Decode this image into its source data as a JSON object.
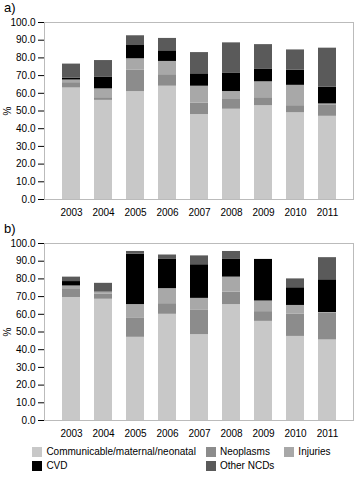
{
  "chart_data": [
    {
      "type": "bar",
      "title": "a)",
      "stacked": true,
      "y_label": "%",
      "categories": [
        "2003",
        "2004",
        "2005",
        "2006",
        "2007",
        "2008",
        "2009",
        "2010",
        "2011"
      ],
      "ylim": [
        0,
        100
      ],
      "yticks": [
        {
          "value": 0,
          "label": "0.0"
        },
        {
          "value": 10,
          "label": "10.0"
        },
        {
          "value": 20,
          "label": "20.0"
        },
        {
          "value": 30,
          "label": "30.0"
        },
        {
          "value": 40,
          "label": "40.0"
        },
        {
          "value": 50,
          "label": "50.0"
        },
        {
          "value": 60,
          "label": "60.0"
        },
        {
          "value": 70,
          "label": "70.0"
        },
        {
          "value": 80,
          "label": "80.0"
        },
        {
          "value": 90,
          "label": "90.0"
        },
        {
          "value": 100,
          "label": "100.0"
        }
      ],
      "series": [
        {
          "name": "Communicable/maternal/neonatal",
          "color": "#c8c8c8",
          "values": [
            63,
            56,
            61,
            64,
            48,
            51,
            53,
            49,
            47
          ]
        },
        {
          "name": "Neoplasms",
          "color": "#8c8c8c",
          "values": [
            3,
            1.5,
            12,
            6.5,
            6.5,
            5.5,
            4.5,
            4,
            6.5
          ]
        },
        {
          "name": "Injuries",
          "color": "#a8a8a8",
          "values": [
            1.5,
            5,
            6.5,
            7.5,
            9.5,
            4.5,
            9,
            11.5,
            0.5
          ]
        },
        {
          "name": "CVD",
          "color": "#000000",
          "values": [
            1,
            6.5,
            7.5,
            6,
            7,
            10.5,
            7,
            8.5,
            9.5
          ]
        },
        {
          "name": "Other NCDs",
          "color": "#5a5a5a",
          "values": [
            8,
            9.5,
            5.5,
            7,
            12,
            17,
            14,
            11.5,
            22
          ]
        }
      ]
    },
    {
      "type": "bar",
      "title": "b)",
      "stacked": true,
      "y_label": "%",
      "legend": "bottom",
      "categories": [
        "2003",
        "2004",
        "2005",
        "2006",
        "2007",
        "2008",
        "2009",
        "2010",
        "2011"
      ],
      "ylim": [
        0,
        100
      ],
      "yticks": [
        {
          "value": 0,
          "label": "0.0"
        },
        {
          "value": 10,
          "label": "10.0"
        },
        {
          "value": 20,
          "label": "20.0"
        },
        {
          "value": 30,
          "label": "30.0"
        },
        {
          "value": 40,
          "label": "40.0"
        },
        {
          "value": 50,
          "label": "50.0"
        },
        {
          "value": 60,
          "label": "60.0"
        },
        {
          "value": 70,
          "label": "70.0"
        },
        {
          "value": 80,
          "label": "80.0"
        },
        {
          "value": 90,
          "label": "90.0"
        },
        {
          "value": 100,
          "label": "100.0"
        }
      ],
      "series": [
        {
          "name": "Communicable/maternal/neonatal",
          "color": "#c8c8c8",
          "values": [
            69.5,
            68.5,
            47,
            60,
            48.5,
            65.5,
            56,
            47.5,
            45.5
          ]
        },
        {
          "name": "Neoplasms",
          "color": "#8c8c8c",
          "values": [
            4.5,
            3,
            11,
            6,
            14,
            7,
            5.5,
            12.5,
            15
          ]
        },
        {
          "name": "Injuries",
          "color": "#a8a8a8",
          "values": [
            2,
            1,
            7.5,
            8.5,
            6.5,
            8.5,
            6,
            5,
            0.5
          ]
        },
        {
          "name": "CVD",
          "color": "#000000",
          "values": [
            2.5,
            0,
            28.5,
            16.5,
            19,
            10,
            23.5,
            10,
            18.5
          ]
        },
        {
          "name": "Other NCDs",
          "color": "#5a5a5a",
          "values": [
            2.5,
            5,
            1.5,
            2.5,
            5,
            4.5,
            0,
            5,
            12.5
          ]
        }
      ]
    }
  ]
}
